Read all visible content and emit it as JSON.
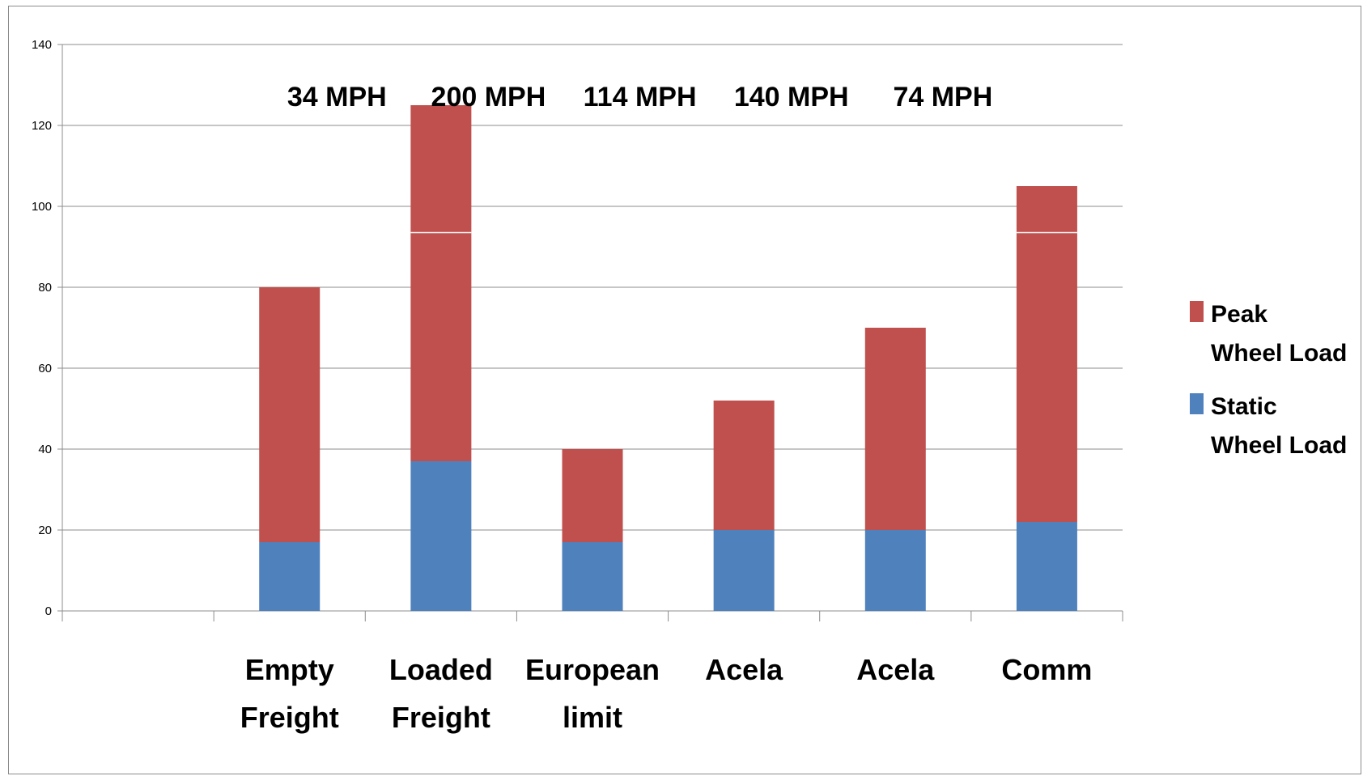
{
  "chart_data": {
    "type": "bar",
    "stacked": true,
    "categories": [
      [
        "",
        ""
      ],
      [
        "Empty",
        "Freight"
      ],
      [
        "Loaded",
        "Freight"
      ],
      [
        "European",
        "limit"
      ],
      [
        "Acela",
        ""
      ],
      [
        "Acela",
        ""
      ],
      [
        "Comm",
        ""
      ]
    ],
    "series": [
      {
        "name": "Static Wheel Load",
        "legend_lines": [
          "Static",
          "Wheel Load"
        ],
        "color": "#4f81bd",
        "values": [
          null,
          17,
          37,
          17,
          20,
          20,
          22
        ]
      },
      {
        "name": "Peak Wheel Load",
        "legend_lines": [
          "Peak",
          "Wheel Load"
        ],
        "color": "#c0504d",
        "values": [
          null,
          63,
          88,
          23,
          32,
          50,
          83
        ]
      }
    ],
    "annotations": [
      {
        "category_index": 1,
        "text": "34 MPH"
      },
      {
        "category_index": 2,
        "text": "200 MPH"
      },
      {
        "category_index": 3,
        "text": "114 MPH"
      },
      {
        "category_index": 4,
        "text": "140 MPH"
      },
      {
        "category_index": 5,
        "text": "74 MPH"
      }
    ],
    "highlight_line_value": 93.5,
    "ylim": [
      0,
      140
    ],
    "yticks": [
      "0",
      "20",
      "40",
      "60",
      "80",
      "100",
      "120",
      "140"
    ],
    "ytick_values": [
      0,
      20,
      40,
      60,
      80,
      100,
      120,
      140
    ],
    "grid": true,
    "legend_position": "right",
    "title": "",
    "xlabel": "",
    "ylabel": ""
  }
}
